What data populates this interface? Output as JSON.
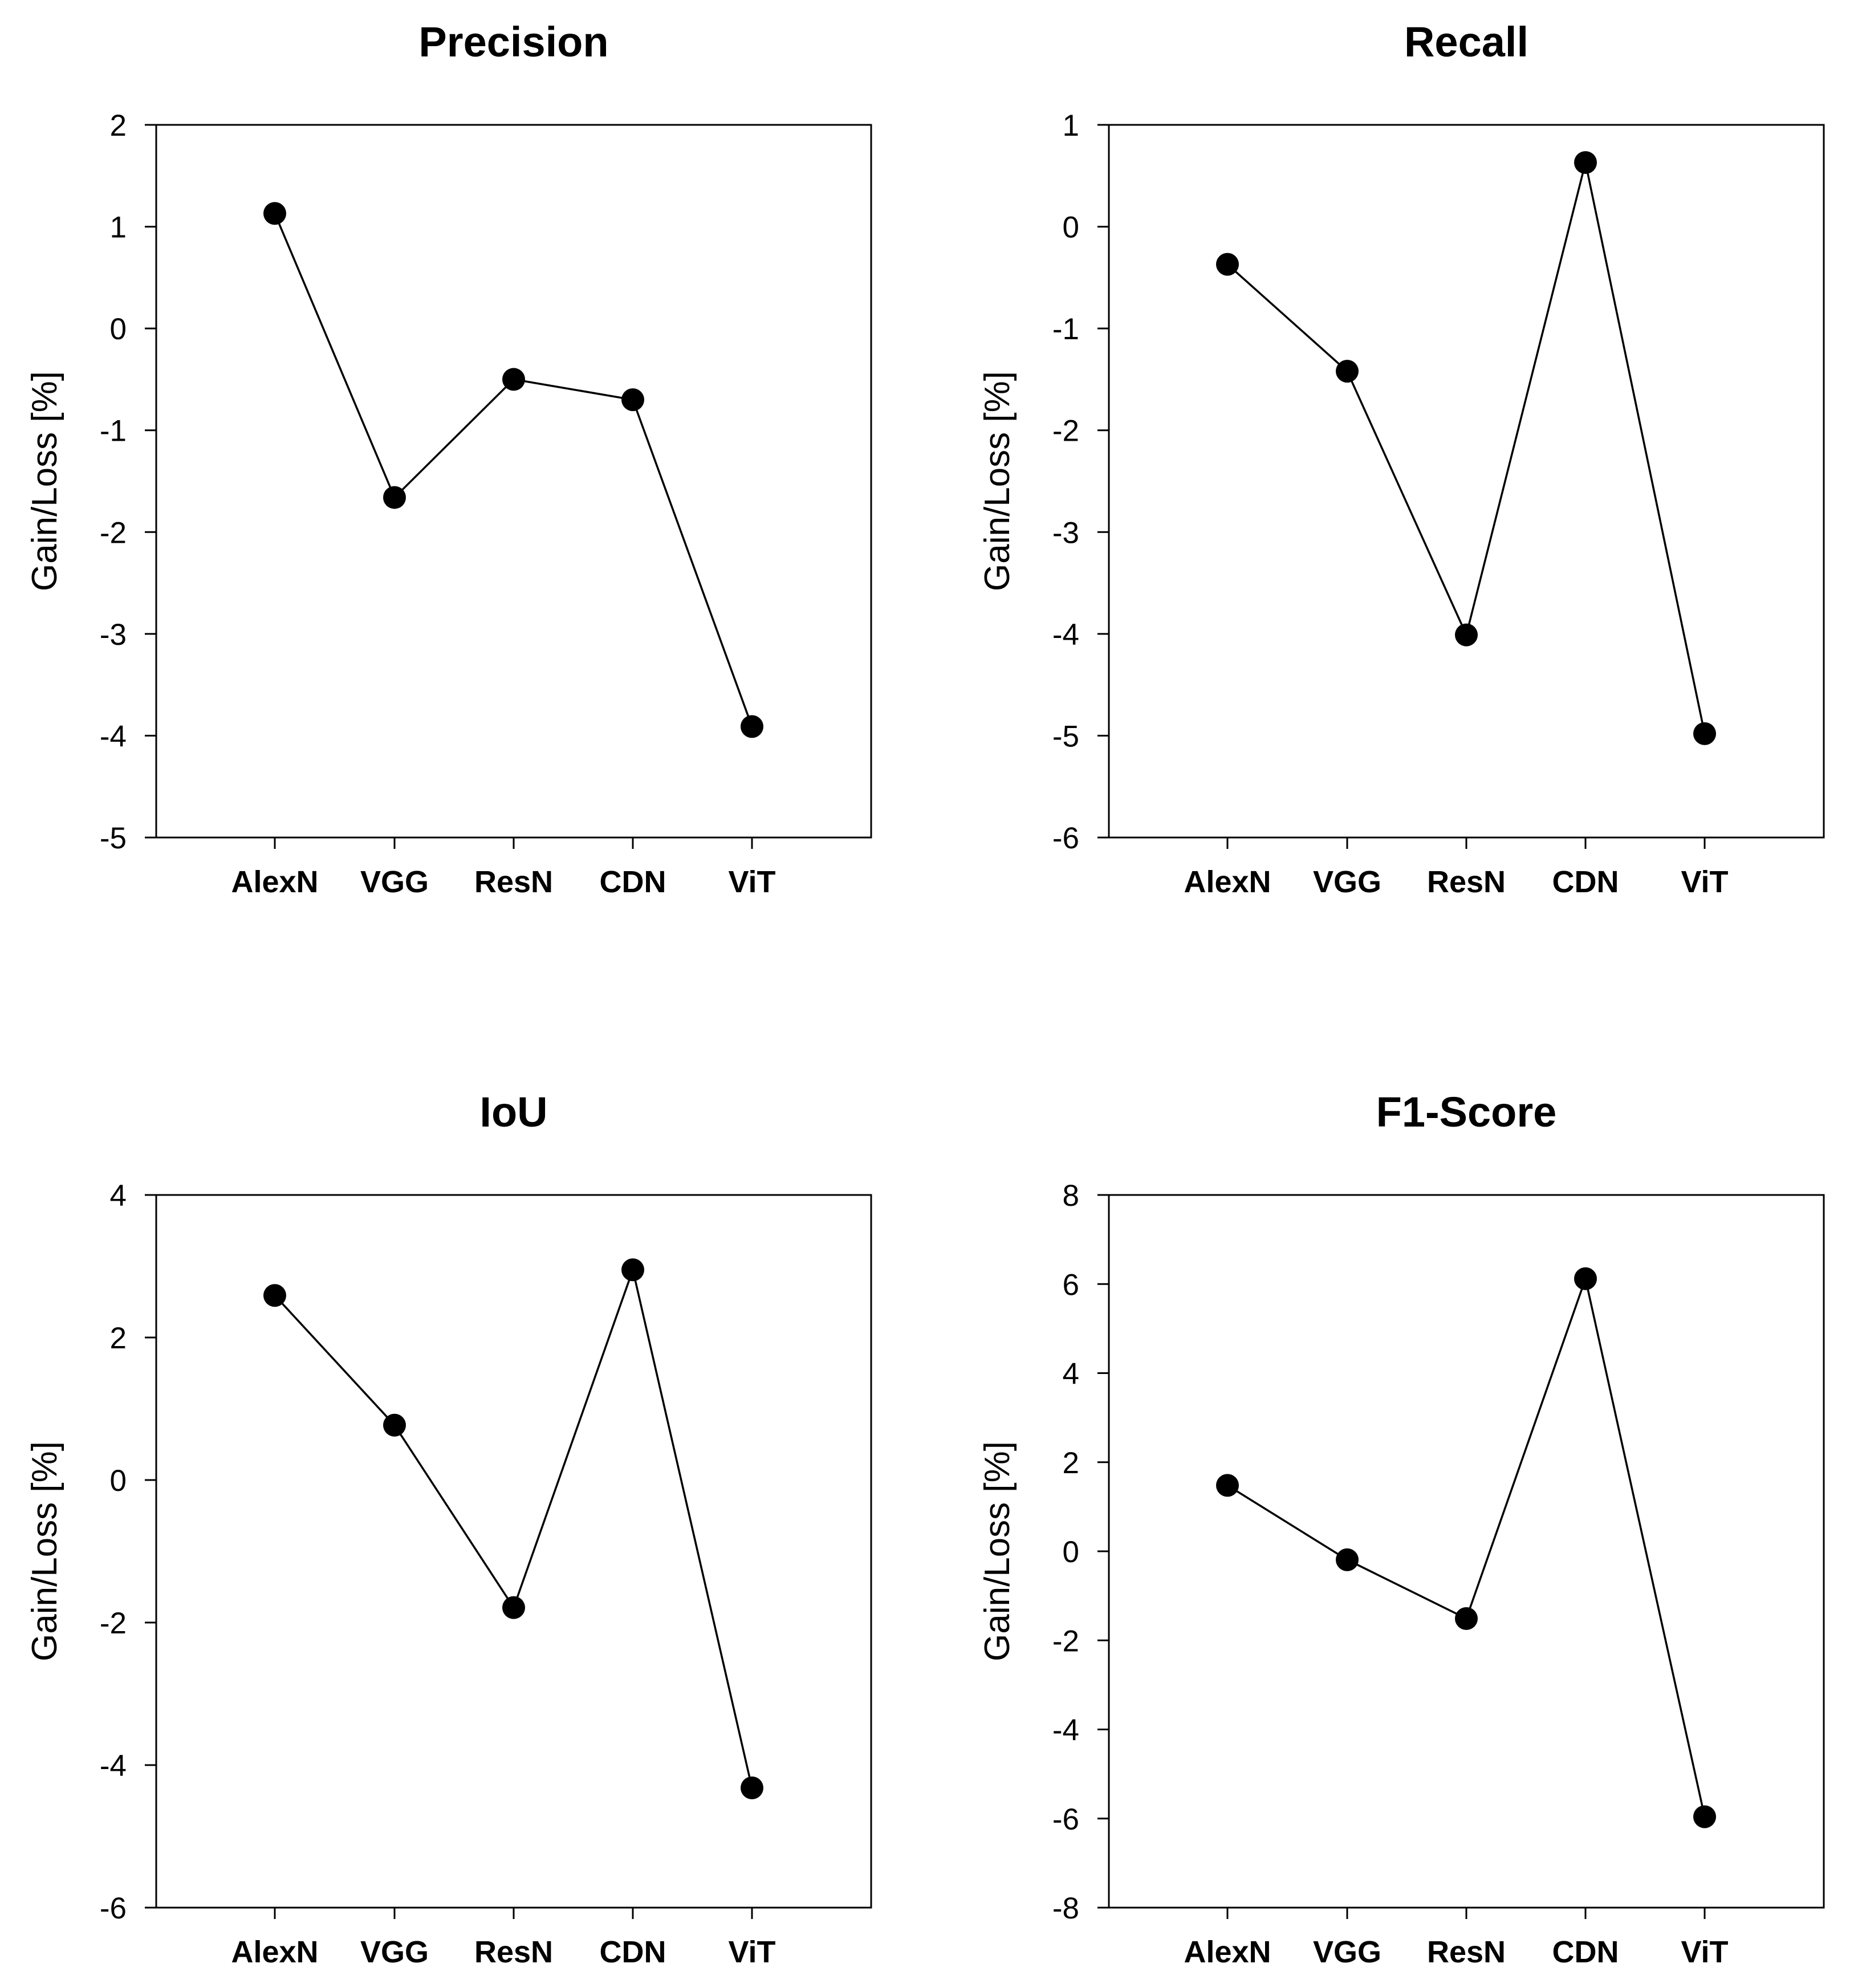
{
  "chart_data": [
    {
      "type": "line",
      "title": "Precision",
      "xlabel": "",
      "ylabel": "Gain/Loss [%]",
      "categories": [
        "AlexN",
        "VGG",
        "ResN",
        "CDN",
        "ViT"
      ],
      "values": [
        1.13,
        -1.66,
        -0.5,
        -0.7,
        -3.91
      ],
      "ylim": [
        -5,
        2
      ],
      "yticks": [
        2,
        1,
        0,
        -1,
        -2,
        -3,
        -4,
        -5
      ],
      "grid": false
    },
    {
      "type": "line",
      "title": "Recall",
      "xlabel": "",
      "ylabel": "Gain/Loss [%]",
      "categories": [
        "AlexN",
        "VGG",
        "ResN",
        "CDN",
        "ViT"
      ],
      "values": [
        -0.37,
        -1.42,
        -4.01,
        0.63,
        -4.98
      ],
      "ylim": [
        -6,
        1
      ],
      "yticks": [
        1,
        0,
        -1,
        -2,
        -3,
        -4,
        -5,
        -6
      ],
      "grid": false
    },
    {
      "type": "line",
      "title": "IoU",
      "xlabel": "",
      "ylabel": "Gain/Loss [%]",
      "categories": [
        "AlexN",
        "VGG",
        "ResN",
        "CDN",
        "ViT"
      ],
      "values": [
        2.59,
        0.77,
        -1.79,
        2.95,
        -4.32
      ],
      "ylim": [
        -6,
        4
      ],
      "yticks": [
        4,
        2,
        0,
        -2,
        -4,
        -6
      ],
      "grid": false
    },
    {
      "type": "line",
      "title": "F1-Score",
      "xlabel": "",
      "ylabel": "Gain/Loss [%]",
      "categories": [
        "AlexN",
        "VGG",
        "ResN",
        "CDN",
        "ViT"
      ],
      "values": [
        1.48,
        -0.19,
        -1.51,
        6.12,
        -5.96
      ],
      "ylim": [
        -8,
        8
      ],
      "yticks": [
        8,
        6,
        4,
        2,
        0,
        -2,
        -4,
        -6,
        -8
      ],
      "grid": false
    }
  ]
}
